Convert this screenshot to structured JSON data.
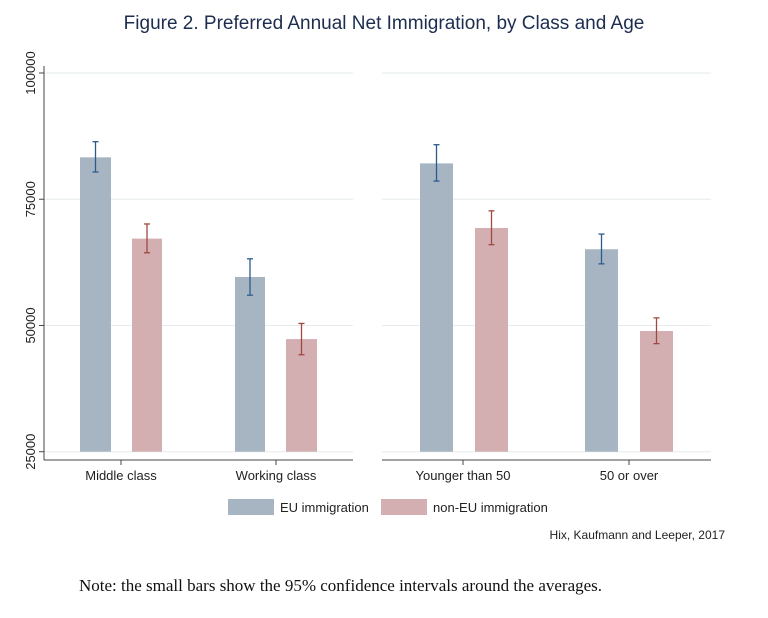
{
  "chart_data": {
    "type": "bar",
    "title": "Figure 2. Preferred Annual Net Immigration, by Class and Age",
    "ylim": [
      25000,
      100000
    ],
    "yticks": [
      "25000",
      "50000",
      "75000",
      "100000"
    ],
    "grid": true,
    "legend_position": "bottom",
    "panels": [
      {
        "categories": [
          "Middle class",
          "Working class"
        ],
        "series": [
          {
            "name": "EU immigration",
            "values": [
              83300,
              59600
            ],
            "ci_low": [
              80400,
              56000
            ],
            "ci_high": [
              86400,
              63200
            ]
          },
          {
            "name": "non-EU immigration",
            "values": [
              67200,
              47300
            ],
            "ci_low": [
              64400,
              44200
            ],
            "ci_high": [
              70100,
              50400
            ]
          }
        ]
      },
      {
        "categories": [
          "Younger than 50",
          "50 or over"
        ],
        "series": [
          {
            "name": "EU immigration",
            "values": [
              82100,
              65100
            ],
            "ci_low": [
              78600,
              62200
            ],
            "ci_high": [
              85800,
              68100
            ]
          },
          {
            "name": "non-EU immigration",
            "values": [
              69300,
              48900
            ],
            "ci_low": [
              66000,
              46400
            ],
            "ci_high": [
              72700,
              51500
            ]
          }
        ]
      }
    ],
    "colors": {
      "eu_bar": "#a7b5c3",
      "noneu_bar": "#d3afb2",
      "eu_ci": "#2c5a8c",
      "noneu_ci": "#a0483f",
      "title": "#1c2d50"
    },
    "legend": [
      "EU immigration",
      "non-EU immigration"
    ],
    "source": "Hix, Kaufmann and Leeper, 2017",
    "note": "Note: the small bars show the 95% confidence intervals around the averages."
  }
}
